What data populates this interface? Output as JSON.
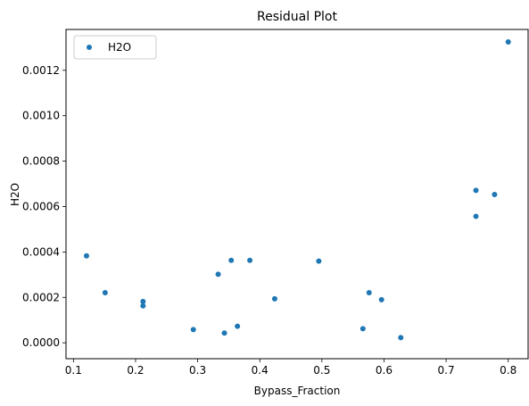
{
  "chart_data": {
    "type": "scatter",
    "title": "Residual Plot",
    "xlabel": "Bypass_Fraction",
    "ylabel": "H2O",
    "xlim": [
      0.088,
      0.832
    ],
    "ylim": [
      -7e-05,
      0.00138
    ],
    "xticks": [
      {
        "value": 0.1,
        "label": "0.1"
      },
      {
        "value": 0.2,
        "label": "0.2"
      },
      {
        "value": 0.3,
        "label": "0.3"
      },
      {
        "value": 0.4,
        "label": "0.4"
      },
      {
        "value": 0.5,
        "label": "0.5"
      },
      {
        "value": 0.6,
        "label": "0.6"
      },
      {
        "value": 0.7,
        "label": "0.7"
      },
      {
        "value": 0.8,
        "label": "0.8"
      }
    ],
    "yticks": [
      {
        "value": 0.0,
        "label": "0.0000"
      },
      {
        "value": 0.0002,
        "label": "0.0002"
      },
      {
        "value": 0.0004,
        "label": "0.0004"
      },
      {
        "value": 0.0006,
        "label": "0.0006"
      },
      {
        "value": 0.0008,
        "label": "0.0008"
      },
      {
        "value": 0.001,
        "label": "0.0010"
      },
      {
        "value": 0.0012,
        "label": "0.0012"
      }
    ],
    "grid": false,
    "legend": {
      "position": "upper-left"
    },
    "series": [
      {
        "name": "H2O",
        "color": "#1f77b4",
        "points": [
          {
            "x": 0.121,
            "y": 0.000383
          },
          {
            "x": 0.151,
            "y": 0.000221
          },
          {
            "x": 0.212,
            "y": 0.000182
          },
          {
            "x": 0.212,
            "y": 0.000163
          },
          {
            "x": 0.293,
            "y": 5.8e-05
          },
          {
            "x": 0.333,
            "y": 0.000302
          },
          {
            "x": 0.343,
            "y": 4.3e-05
          },
          {
            "x": 0.354,
            "y": 0.000363
          },
          {
            "x": 0.364,
            "y": 7.3e-05
          },
          {
            "x": 0.384,
            "y": 0.000363
          },
          {
            "x": 0.424,
            "y": 0.000194
          },
          {
            "x": 0.495,
            "y": 0.00036
          },
          {
            "x": 0.566,
            "y": 6.2e-05
          },
          {
            "x": 0.576,
            "y": 0.000221
          },
          {
            "x": 0.596,
            "y": 0.00019
          },
          {
            "x": 0.627,
            "y": 2.3e-05
          },
          {
            "x": 0.748,
            "y": 0.000671
          },
          {
            "x": 0.748,
            "y": 0.000557
          },
          {
            "x": 0.778,
            "y": 0.000653
          },
          {
            "x": 0.8,
            "y": 0.001325
          }
        ]
      }
    ]
  }
}
